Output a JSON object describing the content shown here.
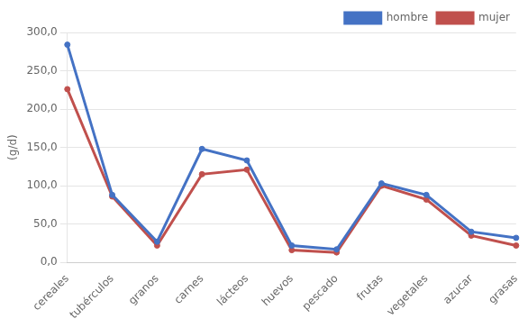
{
  "chart_data": {
    "type": "line",
    "categories": [
      "cereales",
      "tubérculos",
      "granos",
      "carnes",
      "lácteos",
      "huevos",
      "pescado",
      "frutas",
      "vegetales",
      "azucar",
      "grasas"
    ],
    "series": [
      {
        "name": "hombre",
        "color": "#4472C4",
        "marker": "circle",
        "values": [
          284,
          88,
          27,
          148,
          133,
          22,
          17,
          103,
          88,
          40,
          32
        ]
      },
      {
        "name": "mujer",
        "color": "#C0504D",
        "marker": "circle",
        "values": [
          226,
          86,
          22,
          115,
          121,
          16,
          13,
          100,
          82,
          35,
          22
        ]
      }
    ],
    "ylabel": "(g/d)",
    "ylim": [
      0,
      300
    ],
    "yticks": [
      {
        "value": 0,
        "label": "0,0"
      },
      {
        "value": 50,
        "label": "50,0"
      },
      {
        "value": 100,
        "label": "100,0"
      },
      {
        "value": 150,
        "label": "150,0"
      },
      {
        "value": 200,
        "label": "200,0"
      },
      {
        "value": 250,
        "label": "250,0"
      },
      {
        "value": 300,
        "label": "300,0"
      }
    ],
    "grid": "y",
    "legend": "upper right"
  }
}
